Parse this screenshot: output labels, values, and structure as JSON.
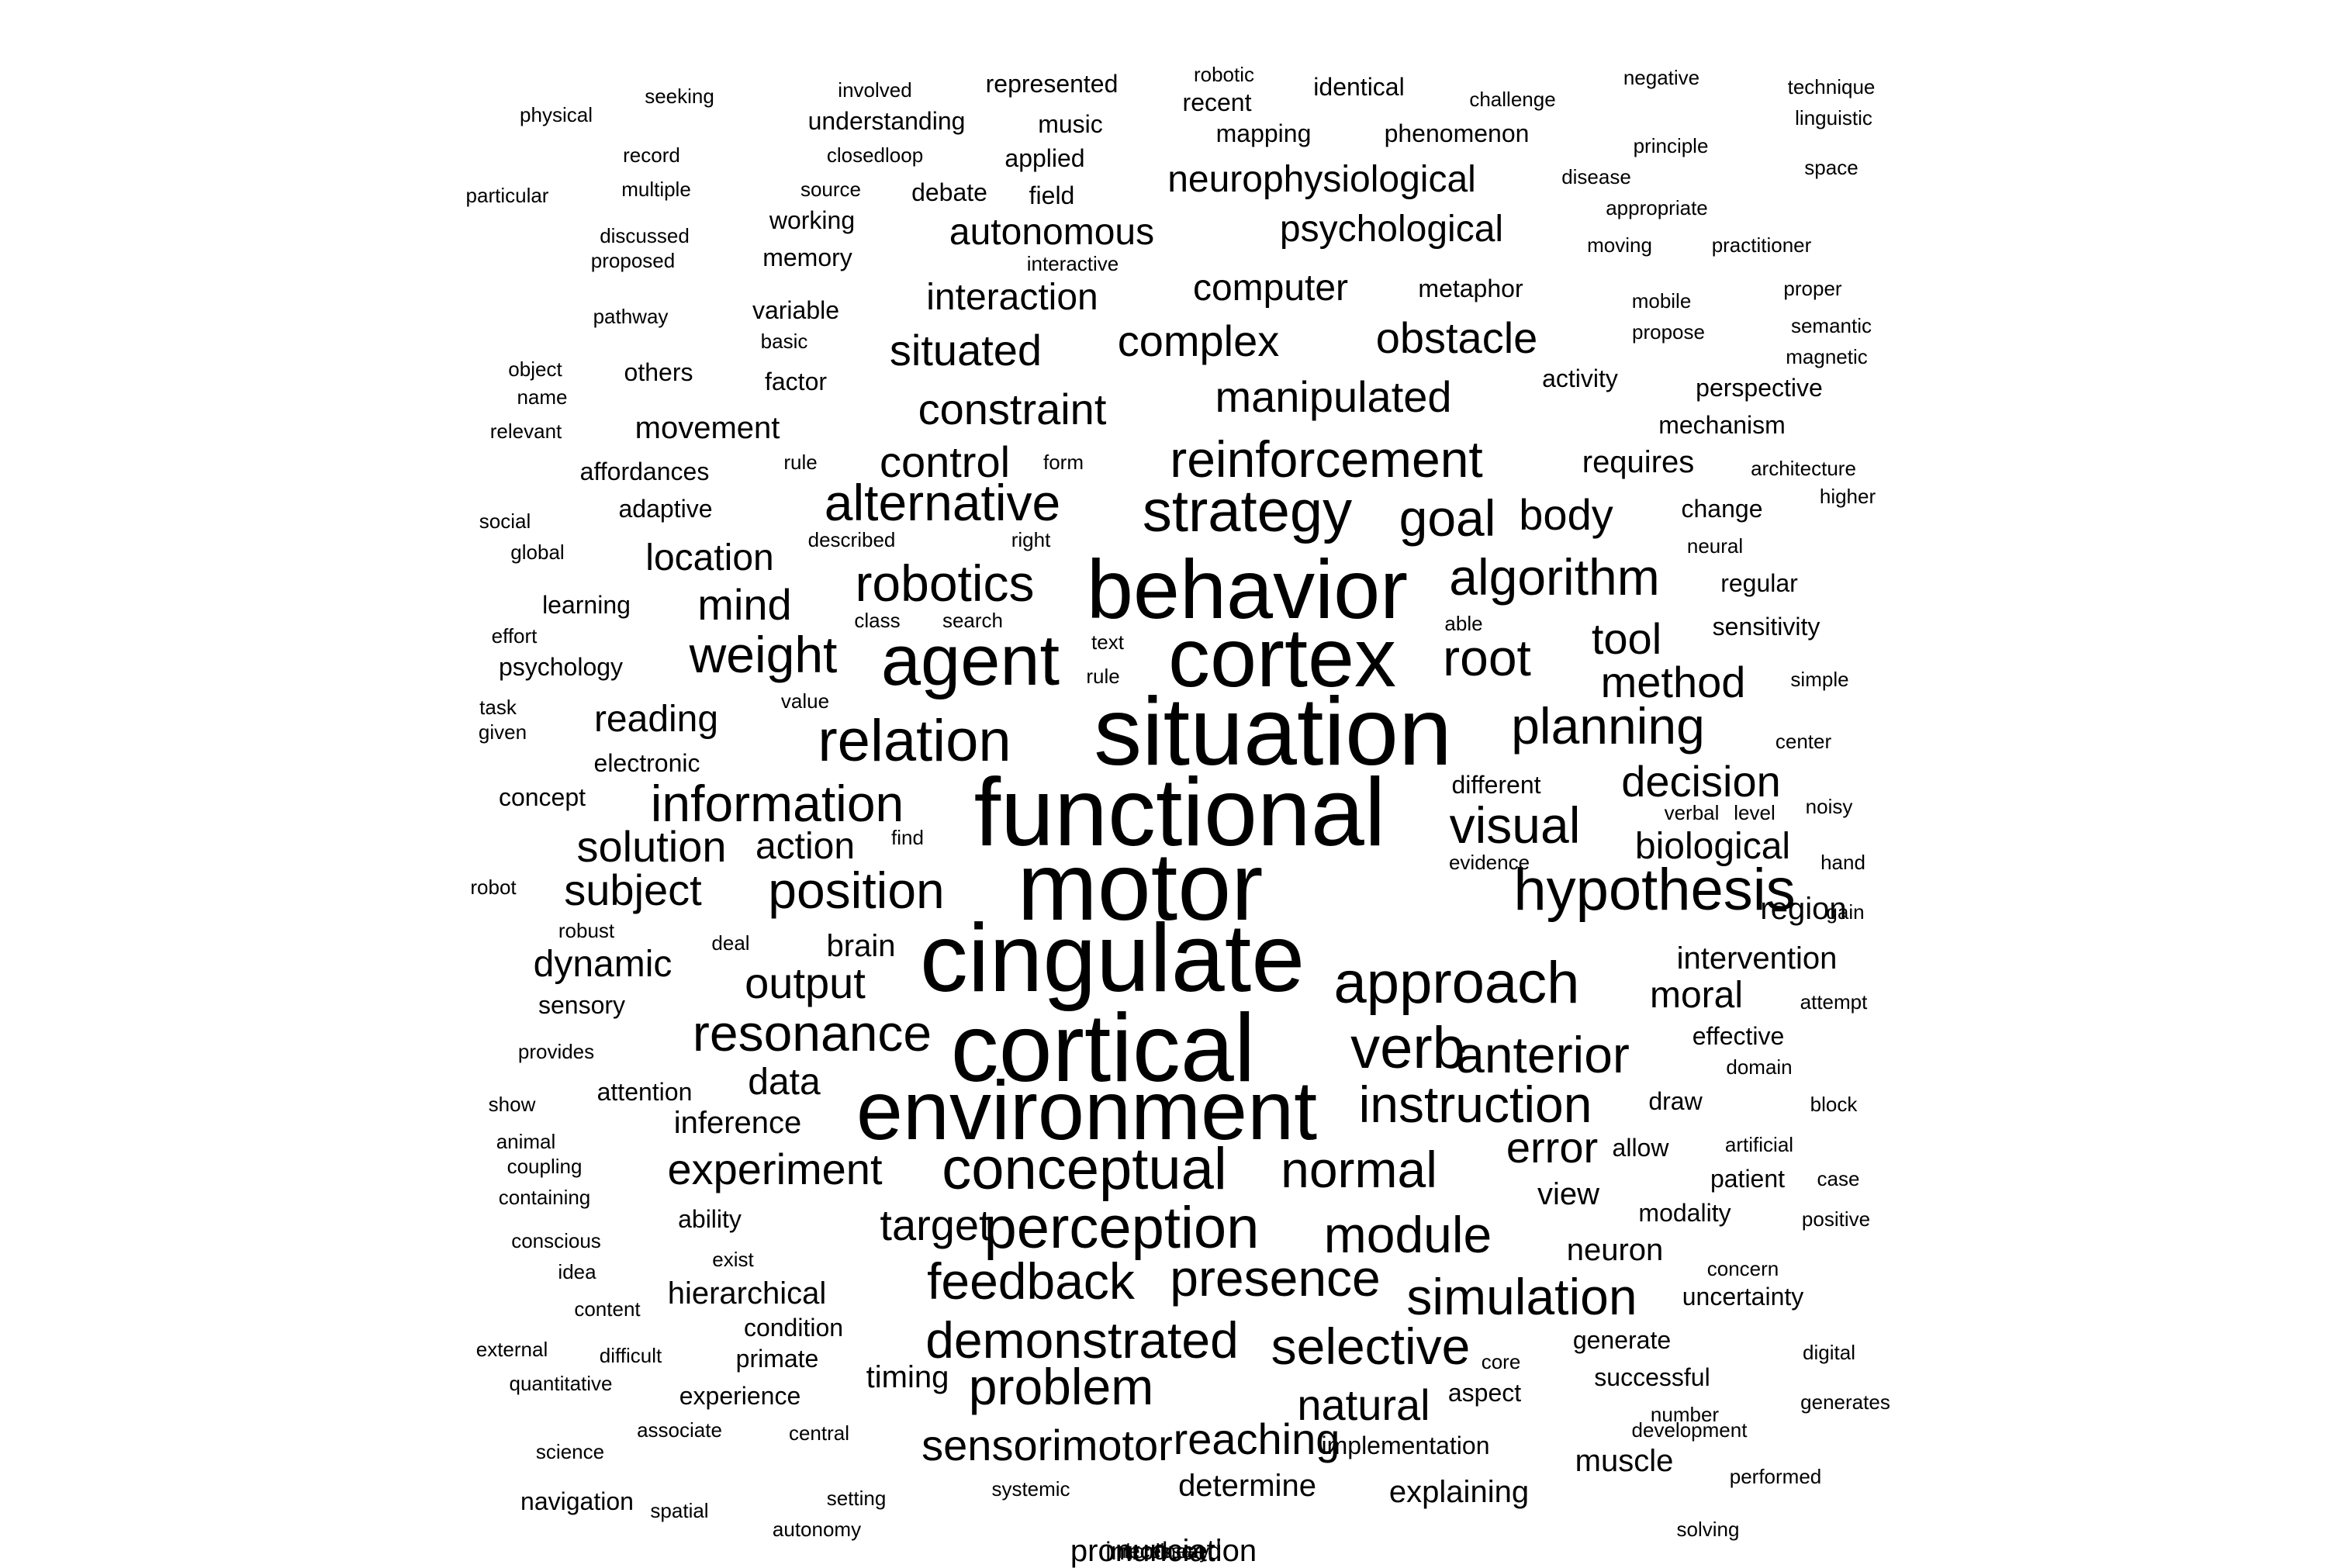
{
  "word_cloud": {
    "words": [
      {
        "text": "physical",
        "w": 1
      },
      {
        "text": "seeking",
        "w": 1
      },
      {
        "text": "involved",
        "w": 1
      },
      {
        "text": "represented",
        "w": 2
      },
      {
        "text": "robotic",
        "w": 1
      },
      {
        "text": "recent",
        "w": 2
      },
      {
        "text": "identical",
        "w": 2
      },
      {
        "text": "challenge",
        "w": 1
      },
      {
        "text": "negative",
        "w": 1
      },
      {
        "text": "technique",
        "w": 1
      },
      {
        "text": "linguistic",
        "w": 1
      },
      {
        "text": "understanding",
        "w": 2
      },
      {
        "text": "music",
        "w": 2
      },
      {
        "text": "mapping",
        "w": 2
      },
      {
        "text": "phenomenon",
        "w": 2
      },
      {
        "text": "record",
        "w": 1
      },
      {
        "text": "closedloop",
        "w": 1
      },
      {
        "text": "applied",
        "w": 2
      },
      {
        "text": "principle",
        "w": 1
      },
      {
        "text": "space",
        "w": 1
      },
      {
        "text": "particular",
        "w": 1
      },
      {
        "text": "multiple",
        "w": 1
      },
      {
        "text": "source",
        "w": 1
      },
      {
        "text": "debate",
        "w": 2
      },
      {
        "text": "field",
        "w": 2
      },
      {
        "text": "neurophysiological",
        "w": 4
      },
      {
        "text": "disease",
        "w": 1
      },
      {
        "text": "appropriate",
        "w": 1
      },
      {
        "text": "discussed",
        "w": 1
      },
      {
        "text": "working",
        "w": 2
      },
      {
        "text": "autonomous",
        "w": 4
      },
      {
        "text": "psychological",
        "w": 4
      },
      {
        "text": "moving",
        "w": 1
      },
      {
        "text": "practitioner",
        "w": 1
      },
      {
        "text": "proposed",
        "w": 1
      },
      {
        "text": "memory",
        "w": 2
      },
      {
        "text": "interactive",
        "w": 1
      },
      {
        "text": "interaction",
        "w": 4
      },
      {
        "text": "computer",
        "w": 4
      },
      {
        "text": "metaphor",
        "w": 2
      },
      {
        "text": "mobile",
        "w": 1
      },
      {
        "text": "proper",
        "w": 1
      },
      {
        "text": "pathway",
        "w": 1
      },
      {
        "text": "variable",
        "w": 2
      },
      {
        "text": "basic",
        "w": 1
      },
      {
        "text": "situated",
        "w": 5
      },
      {
        "text": "complex",
        "w": 5
      },
      {
        "text": "obstacle",
        "w": 5
      },
      {
        "text": "propose",
        "w": 1
      },
      {
        "text": "semantic",
        "w": 1
      },
      {
        "text": "magnetic",
        "w": 1
      },
      {
        "text": "object",
        "w": 1
      },
      {
        "text": "others",
        "w": 2
      },
      {
        "text": "factor",
        "w": 2
      },
      {
        "text": "activity",
        "w": 2
      },
      {
        "text": "name",
        "w": 1
      },
      {
        "text": "manipulated",
        "w": 5
      },
      {
        "text": "perspective",
        "w": 2
      },
      {
        "text": "constraint",
        "w": 5
      },
      {
        "text": "relevant",
        "w": 1
      },
      {
        "text": "movement",
        "w": 3
      },
      {
        "text": "mechanism",
        "w": 2
      },
      {
        "text": "rule",
        "w": 1
      },
      {
        "text": "control",
        "w": 5
      },
      {
        "text": "form",
        "w": 1
      },
      {
        "text": "reinforcement",
        "w": 6
      },
      {
        "text": "requires",
        "w": 3
      },
      {
        "text": "architecture",
        "w": 1
      },
      {
        "text": "affordances",
        "w": 2
      },
      {
        "text": "adaptive",
        "w": 2
      },
      {
        "text": "alternative",
        "w": 6
      },
      {
        "text": "strategy",
        "w": 7
      },
      {
        "text": "goal",
        "w": 6
      },
      {
        "text": "body",
        "w": 5
      },
      {
        "text": "change",
        "w": 2
      },
      {
        "text": "higher",
        "w": 1
      },
      {
        "text": "social",
        "w": 1
      },
      {
        "text": "described",
        "w": 1
      },
      {
        "text": "right",
        "w": 1
      },
      {
        "text": "global",
        "w": 1
      },
      {
        "text": "location",
        "w": 4
      },
      {
        "text": "neural",
        "w": 1
      },
      {
        "text": "robotics",
        "w": 6
      },
      {
        "text": "behavior",
        "w": 9
      },
      {
        "text": "algorithm",
        "w": 6
      },
      {
        "text": "regular",
        "w": 2
      },
      {
        "text": "learning",
        "w": 2
      },
      {
        "text": "mind",
        "w": 5
      },
      {
        "text": "class",
        "w": 1
      },
      {
        "text": "search",
        "w": 1
      },
      {
        "text": "able",
        "w": 1
      },
      {
        "text": "sensitivity",
        "w": 2
      },
      {
        "text": "effort",
        "w": 1
      },
      {
        "text": "text",
        "w": 1
      },
      {
        "text": "tool",
        "w": 5
      },
      {
        "text": "agent",
        "w": 8
      },
      {
        "text": "cortex",
        "w": 9
      },
      {
        "text": "root",
        "w": 6
      },
      {
        "text": "weight",
        "w": 6
      },
      {
        "text": "psychology",
        "w": 2
      },
      {
        "text": "rule",
        "w": 1
      },
      {
        "text": "method",
        "w": 5
      },
      {
        "text": "simple",
        "w": 1
      },
      {
        "text": "task",
        "w": 1
      },
      {
        "text": "value",
        "w": 1
      },
      {
        "text": "given",
        "w": 1
      },
      {
        "text": "reading",
        "w": 4
      },
      {
        "text": "situation",
        "w": 10
      },
      {
        "text": "planning",
        "w": 6
      },
      {
        "text": "relation",
        "w": 7
      },
      {
        "text": "center",
        "w": 1
      },
      {
        "text": "electronic",
        "w": 2
      },
      {
        "text": "different",
        "w": 2
      },
      {
        "text": "decision",
        "w": 5
      },
      {
        "text": "concept",
        "w": 2
      },
      {
        "text": "information",
        "w": 6
      },
      {
        "text": "functional",
        "w": 10
      },
      {
        "text": "verbal",
        "w": 1
      },
      {
        "text": "level",
        "w": 1
      },
      {
        "text": "noisy",
        "w": 1
      },
      {
        "text": "visual",
        "w": 6
      },
      {
        "text": "solution",
        "w": 5
      },
      {
        "text": "action",
        "w": 4
      },
      {
        "text": "find",
        "w": 1
      },
      {
        "text": "biological",
        "w": 4
      },
      {
        "text": "evidence",
        "w": 1
      },
      {
        "text": "hand",
        "w": 1
      },
      {
        "text": "motor",
        "w": 10
      },
      {
        "text": "robot",
        "w": 1
      },
      {
        "text": "subject",
        "w": 5
      },
      {
        "text": "position",
        "w": 6
      },
      {
        "text": "hypothesis",
        "w": 7
      },
      {
        "text": "region",
        "w": 3
      },
      {
        "text": "gain",
        "w": 1
      },
      {
        "text": "robust",
        "w": 1
      },
      {
        "text": "deal",
        "w": 1
      },
      {
        "text": "brain",
        "w": 3
      },
      {
        "text": "intervention",
        "w": 3
      },
      {
        "text": "dynamic",
        "w": 4
      },
      {
        "text": "cingulate",
        "w": 10
      },
      {
        "text": "output",
        "w": 5
      },
      {
        "text": "approach",
        "w": 7
      },
      {
        "text": "moral",
        "w": 4
      },
      {
        "text": "attempt",
        "w": 1
      },
      {
        "text": "sensory",
        "w": 2
      },
      {
        "text": "resonance",
        "w": 6
      },
      {
        "text": "effective",
        "w": 2
      },
      {
        "text": "provides",
        "w": 1
      },
      {
        "text": "cortical",
        "w": 10
      },
      {
        "text": "verb",
        "w": 7
      },
      {
        "text": "anterior",
        "w": 6
      },
      {
        "text": "domain",
        "w": 1
      },
      {
        "text": "data",
        "w": 4
      },
      {
        "text": "show",
        "w": 1
      },
      {
        "text": "attention",
        "w": 2
      },
      {
        "text": "environment",
        "w": 9
      },
      {
        "text": "instruction",
        "w": 6
      },
      {
        "text": "draw",
        "w": 2
      },
      {
        "text": "block",
        "w": 1
      },
      {
        "text": "inference",
        "w": 3
      },
      {
        "text": "animal",
        "w": 1
      },
      {
        "text": "error",
        "w": 5
      },
      {
        "text": "allow",
        "w": 2
      },
      {
        "text": "artificial",
        "w": 1
      },
      {
        "text": "coupling",
        "w": 1
      },
      {
        "text": "experiment",
        "w": 5
      },
      {
        "text": "conceptual",
        "w": 7
      },
      {
        "text": "normal",
        "w": 6
      },
      {
        "text": "patient",
        "w": 2
      },
      {
        "text": "case",
        "w": 1
      },
      {
        "text": "containing",
        "w": 1
      },
      {
        "text": "view",
        "w": 3
      },
      {
        "text": "modality",
        "w": 2
      },
      {
        "text": "positive",
        "w": 1
      },
      {
        "text": "ability",
        "w": 2
      },
      {
        "text": "target",
        "w": 5
      },
      {
        "text": "perception",
        "w": 7
      },
      {
        "text": "module",
        "w": 6
      },
      {
        "text": "conscious",
        "w": 1
      },
      {
        "text": "exist",
        "w": 1
      },
      {
        "text": "neuron",
        "w": 3
      },
      {
        "text": "concern",
        "w": 1
      },
      {
        "text": "idea",
        "w": 1
      },
      {
        "text": "feedback",
        "w": 6
      },
      {
        "text": "presence",
        "w": 6
      },
      {
        "text": "hierarchical",
        "w": 3
      },
      {
        "text": "simulation",
        "w": 6
      },
      {
        "text": "uncertainty",
        "w": 2
      },
      {
        "text": "content",
        "w": 1
      },
      {
        "text": "condition",
        "w": 2
      },
      {
        "text": "demonstrated",
        "w": 6
      },
      {
        "text": "selective",
        "w": 6
      },
      {
        "text": "generate",
        "w": 2
      },
      {
        "text": "external",
        "w": 1
      },
      {
        "text": "difficult",
        "w": 1
      },
      {
        "text": "primate",
        "w": 2
      },
      {
        "text": "core",
        "w": 1
      },
      {
        "text": "digital",
        "w": 1
      },
      {
        "text": "timing",
        "w": 3
      },
      {
        "text": "problem",
        "w": 6
      },
      {
        "text": "successful",
        "w": 2
      },
      {
        "text": "quantitative",
        "w": 1
      },
      {
        "text": "aspect",
        "w": 2
      },
      {
        "text": "experience",
        "w": 2
      },
      {
        "text": "natural",
        "w": 5
      },
      {
        "text": "generates",
        "w": 1
      },
      {
        "text": "number",
        "w": 1
      },
      {
        "text": "associate",
        "w": 1
      },
      {
        "text": "central",
        "w": 1
      },
      {
        "text": "development",
        "w": 1
      },
      {
        "text": "sensorimotor",
        "w": 5
      },
      {
        "text": "reaching",
        "w": 5
      },
      {
        "text": "science",
        "w": 1
      },
      {
        "text": "implementation",
        "w": 2
      },
      {
        "text": "muscle",
        "w": 3
      },
      {
        "text": "performed",
        "w": 1
      },
      {
        "text": "systemic",
        "w": 1
      },
      {
        "text": "determine",
        "w": 3
      },
      {
        "text": "explaining",
        "w": 3
      },
      {
        "text": "navigation",
        "w": 2
      },
      {
        "text": "spatial",
        "w": 1
      },
      {
        "text": "setting",
        "w": 1
      },
      {
        "text": "autonomy",
        "w": 1
      },
      {
        "text": "solving",
        "w": 1
      },
      {
        "text": "pronunciation",
        "w": 3
      },
      {
        "text": "nonlinear",
        "w": 1
      },
      {
        "text": "necessary",
        "w": 1
      },
      {
        "text": "introduced",
        "w": 2
      }
    ]
  }
}
